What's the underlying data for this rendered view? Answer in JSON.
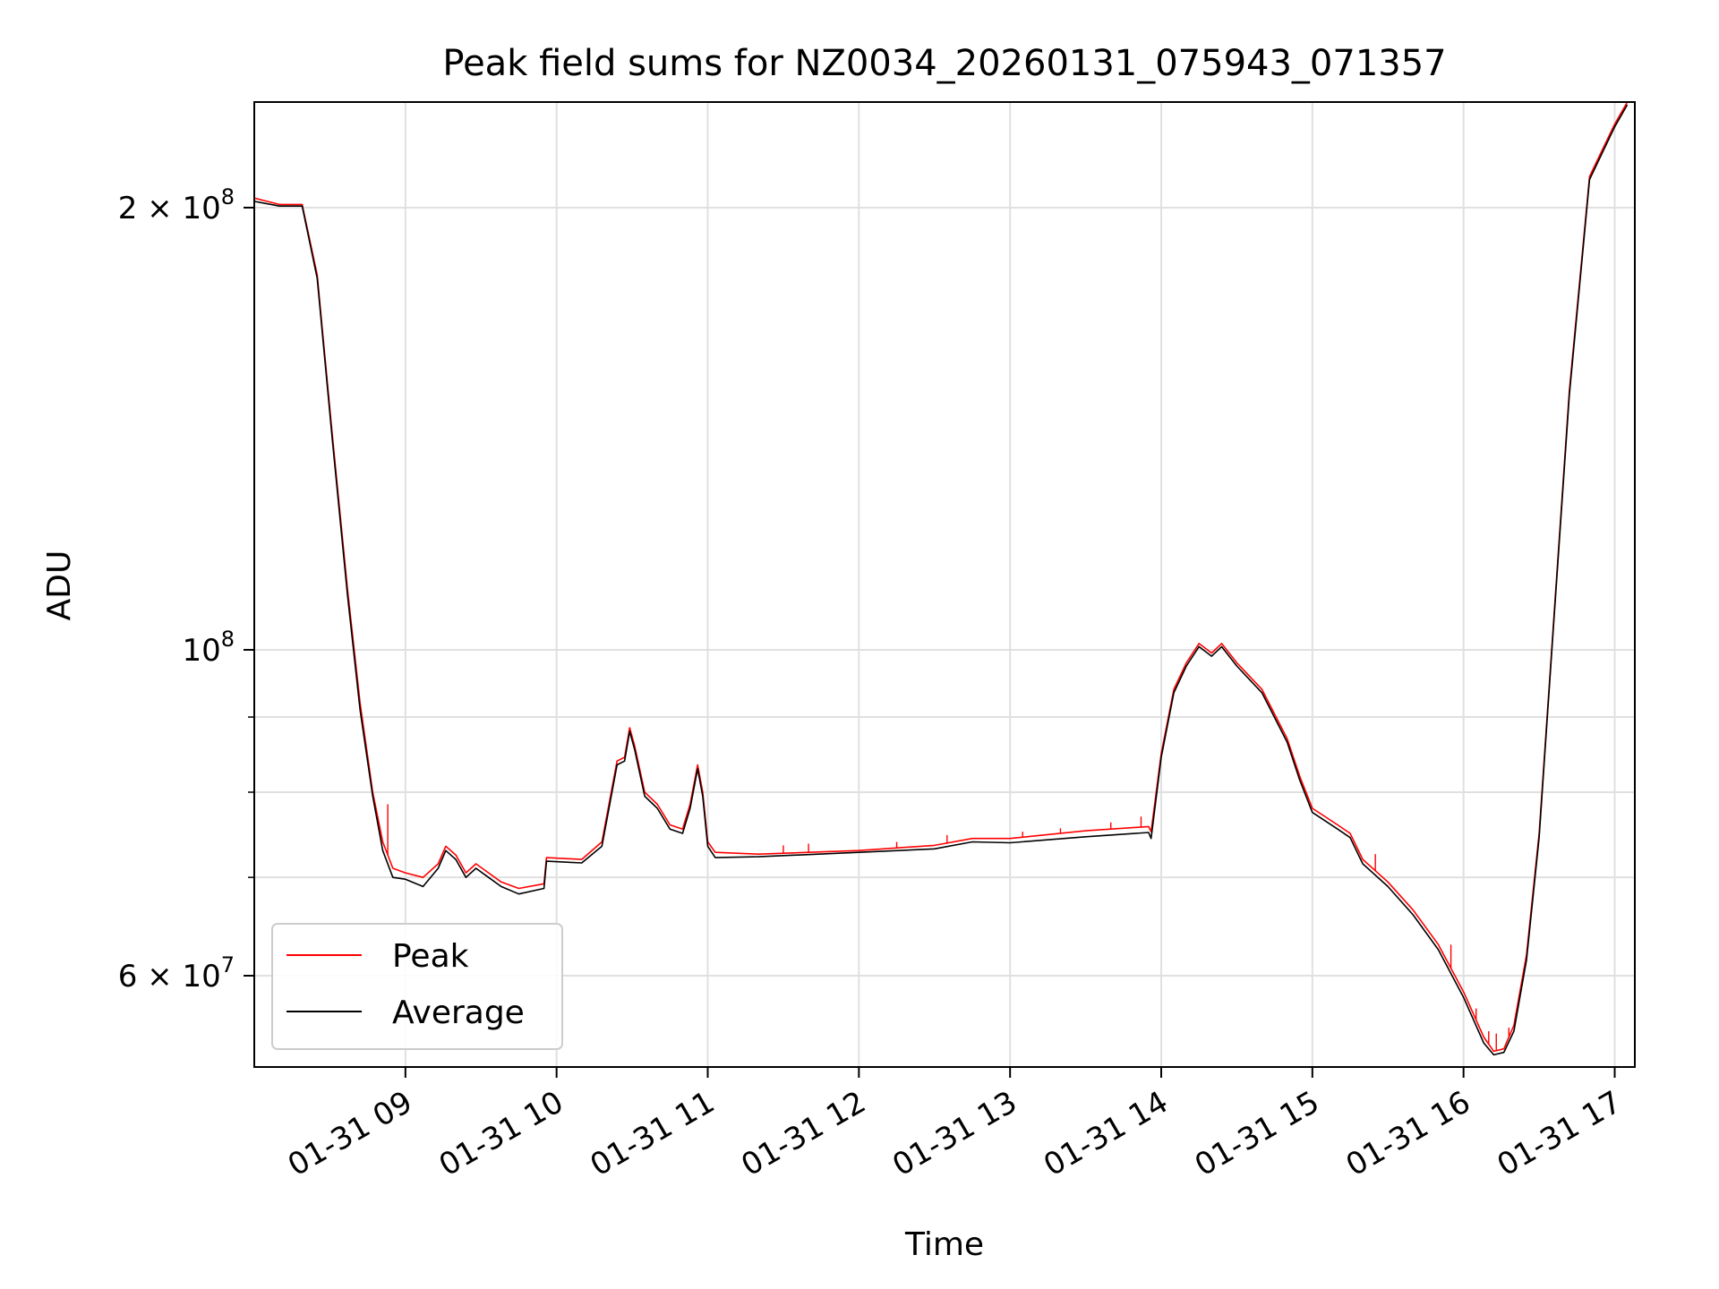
{
  "chart_data": {
    "type": "line",
    "title": "Peak field sums for NZ0034_20260131_075943_071357",
    "xlabel": "Time",
    "ylabel": "ADU",
    "y_scale": "log",
    "grid": true,
    "legend_placement": "lower-left",
    "xlim": [
      "01-31 08:00",
      "01-31 17:08"
    ],
    "ylim": [
      52000000,
      236000000
    ],
    "x_ticks": [
      "01-31 09",
      "01-31 10",
      "01-31 11",
      "01-31 12",
      "01-31 13",
      "01-31 14",
      "01-31 15",
      "01-31 16",
      "01-31 17"
    ],
    "y_ticks_major": [
      {
        "value": 60000000,
        "label_base": "6 × 10",
        "label_exp": "7"
      },
      {
        "value": 100000000,
        "label_base": "10",
        "label_exp": "8"
      },
      {
        "value": 200000000,
        "label_base": "2 × 10",
        "label_exp": "8"
      }
    ],
    "y_ticks_minor": [
      70000000,
      80000000,
      90000000
    ],
    "series": [
      {
        "name": "Peak",
        "color": "#ff0000",
        "points": [
          [
            "01-31 08:00",
            203000000
          ],
          [
            "01-31 08:10",
            201000000
          ],
          [
            "01-31 08:19",
            201000000
          ],
          [
            "01-31 08:25",
            180000000
          ],
          [
            "01-31 08:31",
            140000000
          ],
          [
            "01-31 08:37",
            110000000
          ],
          [
            "01-31 08:42",
            92000000
          ],
          [
            "01-31 08:47",
            80000000
          ],
          [
            "01-31 08:51",
            74000000
          ],
          [
            "01-31 08:55",
            71000000
          ],
          [
            "01-31 09:00",
            70500000
          ],
          [
            "01-31 09:07",
            70000000
          ],
          [
            "01-31 09:13",
            71500000
          ],
          [
            "01-31 09:16",
            73500000
          ],
          [
            "01-31 09:20",
            72500000
          ],
          [
            "01-31 09:24",
            70500000
          ],
          [
            "01-31 09:28",
            71500000
          ],
          [
            "01-31 09:33",
            70500000
          ],
          [
            "01-31 09:38",
            69500000
          ],
          [
            "01-31 09:45",
            68800000
          ],
          [
            "01-31 09:55",
            69300000
          ],
          [
            "01-31 09:56",
            72200000
          ],
          [
            "01-31 10:10",
            72000000
          ],
          [
            "01-31 10:18",
            74000000
          ],
          [
            "01-31 10:24",
            84000000
          ],
          [
            "01-31 10:27",
            84500000
          ],
          [
            "01-31 10:29",
            88500000
          ],
          [
            "01-31 10:31",
            86000000
          ],
          [
            "01-31 10:35",
            80000000
          ],
          [
            "01-31 10:40",
            78500000
          ],
          [
            "01-31 10:45",
            76000000
          ],
          [
            "01-31 10:50",
            75500000
          ],
          [
            "01-31 10:53",
            78500000
          ],
          [
            "01-31 10:56",
            83500000
          ],
          [
            "01-31 10:58",
            80000000
          ],
          [
            "01-31 11:00",
            74000000
          ],
          [
            "01-31 11:03",
            72800000
          ],
          [
            "01-31 11:20",
            72600000
          ],
          [
            "01-31 12:00",
            73000000
          ],
          [
            "01-31 12:30",
            73600000
          ],
          [
            "01-31 12:45",
            74400000
          ],
          [
            "01-31 13:00",
            74400000
          ],
          [
            "01-31 13:30",
            75300000
          ],
          [
            "01-31 13:55",
            75800000
          ],
          [
            "01-31 13:56",
            75200000
          ],
          [
            "01-31 14:00",
            85000000
          ],
          [
            "01-31 14:05",
            94000000
          ],
          [
            "01-31 14:10",
            98000000
          ],
          [
            "01-31 14:15",
            101000000
          ],
          [
            "01-31 14:20",
            99500000
          ],
          [
            "01-31 14:24",
            101000000
          ],
          [
            "01-31 14:30",
            98000000
          ],
          [
            "01-31 14:40",
            94000000
          ],
          [
            "01-31 14:50",
            87000000
          ],
          [
            "01-31 14:55",
            82000000
          ],
          [
            "01-31 15:00",
            78000000
          ],
          [
            "01-31 15:10",
            76000000
          ],
          [
            "01-31 15:15",
            75000000
          ],
          [
            "01-31 15:20",
            72000000
          ],
          [
            "01-31 15:30",
            69500000
          ],
          [
            "01-31 15:40",
            66500000
          ],
          [
            "01-31 15:50",
            63000000
          ],
          [
            "01-31 16:00",
            58500000
          ],
          [
            "01-31 16:08",
            54500000
          ],
          [
            "01-31 16:12",
            53300000
          ],
          [
            "01-31 16:16",
            53500000
          ],
          [
            "01-31 16:20",
            55500000
          ],
          [
            "01-31 16:25",
            62000000
          ],
          [
            "01-31 16:30",
            75000000
          ],
          [
            "01-31 16:35",
            100000000
          ],
          [
            "01-31 16:42",
            150000000
          ],
          [
            "01-31 16:50",
            210000000
          ],
          [
            "01-31 17:00",
            228000000
          ],
          [
            "01-31 17:05",
            236000000
          ]
        ],
        "spikes": [
          [
            "01-31 08:53",
            78500000
          ],
          [
            "01-31 11:30",
            73600000
          ],
          [
            "01-31 11:40",
            73800000
          ],
          [
            "01-31 12:15",
            74000000
          ],
          [
            "01-31 12:35",
            74800000
          ],
          [
            "01-31 13:05",
            75200000
          ],
          [
            "01-31 13:20",
            75600000
          ],
          [
            "01-31 13:40",
            76300000
          ],
          [
            "01-31 13:52",
            77000000
          ],
          [
            "01-31 15:25",
            72600000
          ],
          [
            "01-31 15:55",
            63000000
          ],
          [
            "01-31 16:05",
            57000000
          ],
          [
            "01-31 16:10",
            55000000
          ],
          [
            "01-31 16:13",
            54800000
          ],
          [
            "01-31 16:18",
            55300000
          ]
        ]
      },
      {
        "name": "Average",
        "color": "#000000",
        "points": [
          [
            "01-31 08:00",
            202000000
          ],
          [
            "01-31 08:10",
            200500000
          ],
          [
            "01-31 08:19",
            200500000
          ],
          [
            "01-31 08:25",
            179000000
          ],
          [
            "01-31 08:31",
            139000000
          ],
          [
            "01-31 08:37",
            109000000
          ],
          [
            "01-31 08:42",
            91000000
          ],
          [
            "01-31 08:47",
            79500000
          ],
          [
            "01-31 08:51",
            73000000
          ],
          [
            "01-31 08:55",
            70000000
          ],
          [
            "01-31 09:00",
            69800000
          ],
          [
            "01-31 09:07",
            69000000
          ],
          [
            "01-31 09:13",
            71000000
          ],
          [
            "01-31 09:16",
            73000000
          ],
          [
            "01-31 09:20",
            72000000
          ],
          [
            "01-31 09:24",
            70000000
          ],
          [
            "01-31 09:28",
            71000000
          ],
          [
            "01-31 09:33",
            70000000
          ],
          [
            "01-31 09:38",
            69000000
          ],
          [
            "01-31 09:45",
            68200000
          ],
          [
            "01-31 09:55",
            68800000
          ],
          [
            "01-31 09:56",
            71800000
          ],
          [
            "01-31 10:10",
            71600000
          ],
          [
            "01-31 10:18",
            73500000
          ],
          [
            "01-31 10:24",
            83500000
          ],
          [
            "01-31 10:27",
            84000000
          ],
          [
            "01-31 10:29",
            88000000
          ],
          [
            "01-31 10:31",
            85500000
          ],
          [
            "01-31 10:35",
            79500000
          ],
          [
            "01-31 10:40",
            78000000
          ],
          [
            "01-31 10:45",
            75500000
          ],
          [
            "01-31 10:50",
            75000000
          ],
          [
            "01-31 10:53",
            78000000
          ],
          [
            "01-31 10:56",
            83000000
          ],
          [
            "01-31 10:58",
            79500000
          ],
          [
            "01-31 11:00",
            73500000
          ],
          [
            "01-31 11:03",
            72200000
          ],
          [
            "01-31 11:20",
            72300000
          ],
          [
            "01-31 12:00",
            72800000
          ],
          [
            "01-31 12:30",
            73200000
          ],
          [
            "01-31 12:45",
            74000000
          ],
          [
            "01-31 13:00",
            73900000
          ],
          [
            "01-31 13:30",
            74600000
          ],
          [
            "01-31 13:55",
            75100000
          ],
          [
            "01-31 13:56",
            74400000
          ],
          [
            "01-31 14:00",
            84500000
          ],
          [
            "01-31 14:05",
            93500000
          ],
          [
            "01-31 14:10",
            97500000
          ],
          [
            "01-31 14:15",
            100500000
          ],
          [
            "01-31 14:20",
            99000000
          ],
          [
            "01-31 14:24",
            100500000
          ],
          [
            "01-31 14:30",
            97500000
          ],
          [
            "01-31 14:40",
            93500000
          ],
          [
            "01-31 14:50",
            86500000
          ],
          [
            "01-31 14:55",
            81500000
          ],
          [
            "01-31 15:00",
            77500000
          ],
          [
            "01-31 15:10",
            75500000
          ],
          [
            "01-31 15:15",
            74500000
          ],
          [
            "01-31 15:20",
            71500000
          ],
          [
            "01-31 15:30",
            69000000
          ],
          [
            "01-31 15:40",
            66000000
          ],
          [
            "01-31 15:50",
            62500000
          ],
          [
            "01-31 16:00",
            58000000
          ],
          [
            "01-31 16:08",
            54000000
          ],
          [
            "01-31 16:12",
            53000000
          ],
          [
            "01-31 16:16",
            53200000
          ],
          [
            "01-31 16:20",
            55000000
          ],
          [
            "01-31 16:25",
            61500000
          ],
          [
            "01-31 16:30",
            74500000
          ],
          [
            "01-31 16:35",
            99500000
          ],
          [
            "01-31 16:42",
            149000000
          ],
          [
            "01-31 16:50",
            209000000
          ],
          [
            "01-31 17:00",
            227000000
          ],
          [
            "01-31 17:05",
            235000000
          ]
        ]
      }
    ]
  }
}
